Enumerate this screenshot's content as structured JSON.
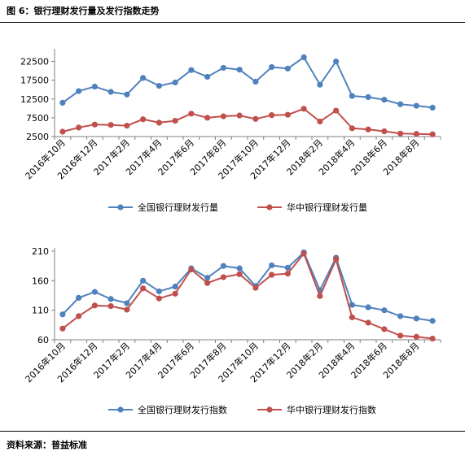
{
  "figure_title": "图 6：银行理财发行量及发行指数走势",
  "source": "资料来源：普益标准",
  "colors": {
    "blue": "#4F81BD",
    "red": "#C0504D",
    "axis": "#7f7f7f"
  },
  "chart_data": [
    {
      "type": "line",
      "categories": [
        "2016年10月",
        "2016年11月",
        "2016年12月",
        "2017年1月",
        "2017年2月",
        "2017年3月",
        "2017年4月",
        "2017年5月",
        "2017年6月",
        "2017年7月",
        "2017年8月",
        "2017年9月",
        "2017年10月",
        "2017年11月",
        "2017年12月",
        "2018年1月",
        "2018年2月",
        "2018年3月",
        "2018年4月",
        "2018年5月",
        "2018年6月",
        "2018年7月",
        "2018年8月",
        "2018年9月"
      ],
      "tick_labels": [
        "2016年10月",
        "2016年12月",
        "2017年2月",
        "2017年4月",
        "2017年6月",
        "2017年8月",
        "2017年10月",
        "2017年12月",
        "2018年2月",
        "2018年4月",
        "2018年6月",
        "2018年8月"
      ],
      "yticks": [
        "2500",
        "7500",
        "12500",
        "17500",
        "22500"
      ],
      "ylim": [
        2500,
        25000
      ],
      "series": [
        {
          "name": "全国银行理财发行量",
          "color": "#4F81BD",
          "values": [
            11500,
            14600,
            15800,
            14400,
            13700,
            18100,
            16000,
            16900,
            20200,
            18400,
            20800,
            20300,
            17100,
            21000,
            20600,
            23600,
            16300,
            22500,
            13300,
            13000,
            12300,
            11100,
            10700,
            10200
          ]
        },
        {
          "name": "华中银行理财发行量",
          "color": "#C0504D",
          "values": [
            3800,
            4900,
            5700,
            5600,
            5400,
            7100,
            6200,
            6700,
            8600,
            7500,
            7900,
            8100,
            7200,
            8200,
            8300,
            9900,
            6500,
            9400,
            4700,
            4400,
            3900,
            3300,
            3200,
            3100
          ]
        }
      ]
    },
    {
      "type": "line",
      "categories": [
        "2016年10月",
        "2016年11月",
        "2016年12月",
        "2017年1月",
        "2017年2月",
        "2017年3月",
        "2017年4月",
        "2017年5月",
        "2017年6月",
        "2017年7月",
        "2017年8月",
        "2017年9月",
        "2017年10月",
        "2017年11月",
        "2017年12月",
        "2018年1月",
        "2018年2月",
        "2018年3月",
        "2018年4月",
        "2018年5月",
        "2018年6月",
        "2018年7月",
        "2018年8月",
        "2018年9月"
      ],
      "tick_labels": [
        "2016年10月",
        "2016年12月",
        "2017年2月",
        "2017年4月",
        "2017年6月",
        "2017年8月",
        "2017年10月",
        "2017年12月",
        "2018年2月",
        "2018年4月",
        "2018年6月",
        "2018年8月"
      ],
      "yticks": [
        "60",
        "110",
        "160",
        "210"
      ],
      "ylim": [
        60,
        210
      ],
      "series": [
        {
          "name": "全国银行理财发行指数",
          "color": "#4F81BD",
          "values": [
            103,
            131,
            141,
            129,
            122,
            160,
            142,
            150,
            181,
            165,
            185,
            181,
            151,
            186,
            182,
            208,
            144,
            199,
            119,
            115,
            110,
            100,
            96,
            92
          ]
        },
        {
          "name": "华中银行理财发行指数",
          "color": "#C0504D",
          "values": [
            79,
            100,
            118,
            117,
            111,
            147,
            130,
            138,
            179,
            156,
            166,
            171,
            148,
            170,
            172,
            206,
            134,
            196,
            98,
            89,
            78,
            67,
            65,
            62
          ]
        }
      ]
    }
  ]
}
